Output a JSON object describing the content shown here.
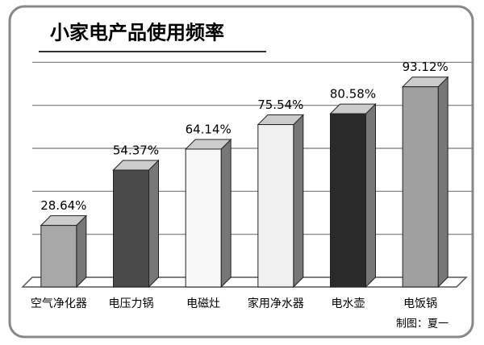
{
  "chart_data": {
    "type": "bar",
    "title": "小家电产品使用频率",
    "categories": [
      "空气净化器",
      "电压力锅",
      "电磁灶",
      "家用净水器",
      "电水壶",
      "电饭锅"
    ],
    "values": [
      28.64,
      54.37,
      64.14,
      75.54,
      80.58,
      93.12
    ],
    "value_labels": [
      "28.64%",
      "54.37%",
      "64.14%",
      "75.54%",
      "80.58%",
      "93.12%"
    ],
    "colors": [
      "#a8a8a8",
      "#4a4a4a",
      "#f8f8f8",
      "#f0f0f0",
      "#2a2a2a",
      "#a0a0a0"
    ],
    "ylim": [
      0,
      105
    ],
    "yticks": [
      0,
      20,
      40,
      60,
      80,
      100
    ],
    "grid": true,
    "credit": "制图：夏一"
  }
}
